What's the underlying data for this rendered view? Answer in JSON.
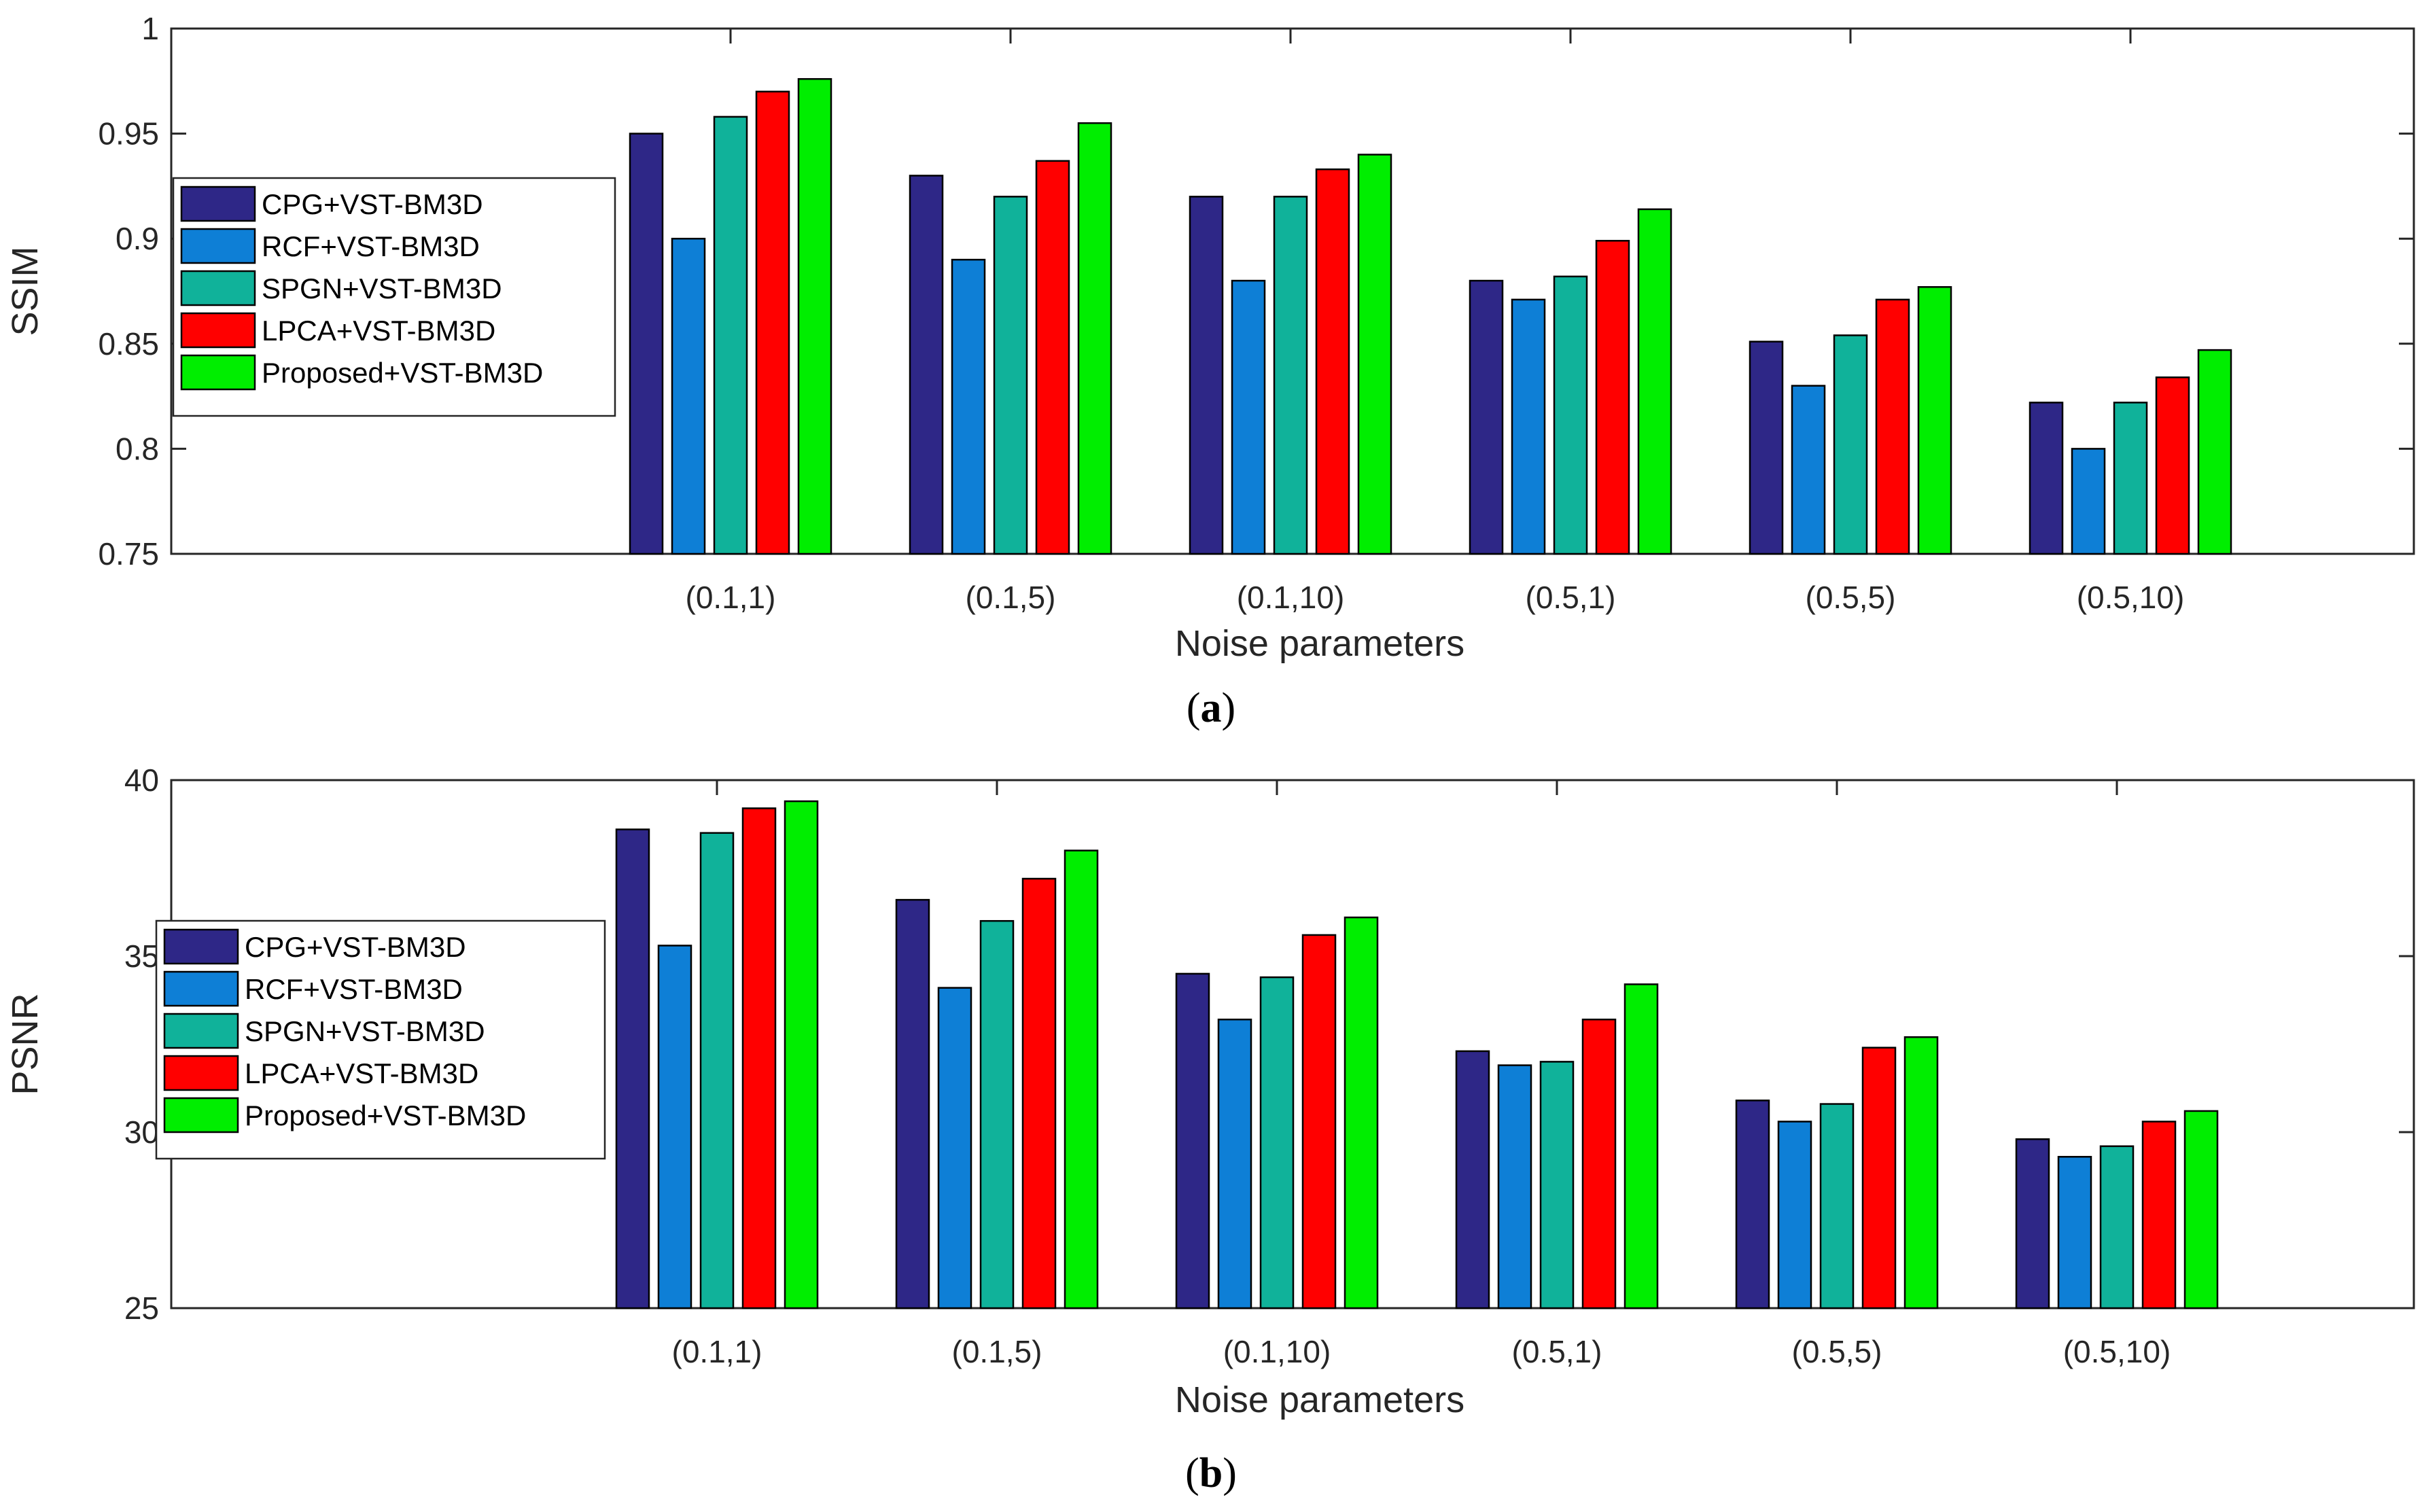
{
  "colors": {
    "series": [
      "#2e2787",
      "#0e7fd6",
      "#10b29a",
      "#ff0000",
      "#00ee00"
    ],
    "axis": "#262626"
  },
  "chart_data": [
    {
      "type": "bar",
      "panel_label": "a",
      "categories": [
        "(0.1,1)",
        "(0.1,5)",
        "(0.1,10)",
        "(0.5,1)",
        "(0.5,5)",
        "(0.5,10)"
      ],
      "series": [
        {
          "name": "CPG+VST-BM3D",
          "values": [
            0.95,
            0.93,
            0.92,
            0.88,
            0.851,
            0.822
          ]
        },
        {
          "name": "RCF+VST-BM3D",
          "values": [
            0.9,
            0.89,
            0.88,
            0.871,
            0.83,
            0.8
          ]
        },
        {
          "name": "SPGN+VST-BM3D",
          "values": [
            0.958,
            0.92,
            0.92,
            0.882,
            0.854,
            0.822
          ]
        },
        {
          "name": "LPCA+VST-BM3D",
          "values": [
            0.97,
            0.937,
            0.933,
            0.899,
            0.871,
            0.834
          ]
        },
        {
          "name": "Proposed+VST-BM3D",
          "values": [
            0.976,
            0.955,
            0.94,
            0.914,
            0.877,
            0.847
          ]
        }
      ],
      "xlabel": "Noise parameters",
      "ylabel": "SSIM",
      "ylim": [
        0.75,
        1.0
      ],
      "yticks": [
        "0.75",
        "0.8",
        "0.85",
        "0.9",
        "0.95",
        "1"
      ],
      "legend_position": "left"
    },
    {
      "type": "bar",
      "panel_label": "b",
      "categories": [
        "(0.1,1)",
        "(0.1,5)",
        "(0.1,10)",
        "(0.5,1)",
        "(0.5,5)",
        "(0.5,10)"
      ],
      "series": [
        {
          "name": "CPG+VST-BM3D",
          "values": [
            38.6,
            36.6,
            34.5,
            32.3,
            30.9,
            29.8
          ]
        },
        {
          "name": "RCF+VST-BM3D",
          "values": [
            35.3,
            34.1,
            33.2,
            31.9,
            30.3,
            29.3
          ]
        },
        {
          "name": "SPGN+VST-BM3D",
          "values": [
            38.5,
            36.0,
            34.4,
            32.0,
            30.8,
            29.6
          ]
        },
        {
          "name": "LPCA+VST-BM3D",
          "values": [
            39.2,
            37.2,
            35.6,
            33.2,
            32.4,
            30.3
          ]
        },
        {
          "name": "Proposed+VST-BM3D",
          "values": [
            39.4,
            38.0,
            36.1,
            34.2,
            32.7,
            30.6
          ]
        }
      ],
      "xlabel": "Noise parameters",
      "ylabel": "PSNR",
      "ylim": [
        25,
        40
      ],
      "yticks": [
        "25",
        "30",
        "35",
        "40"
      ],
      "legend_position": "left"
    }
  ]
}
